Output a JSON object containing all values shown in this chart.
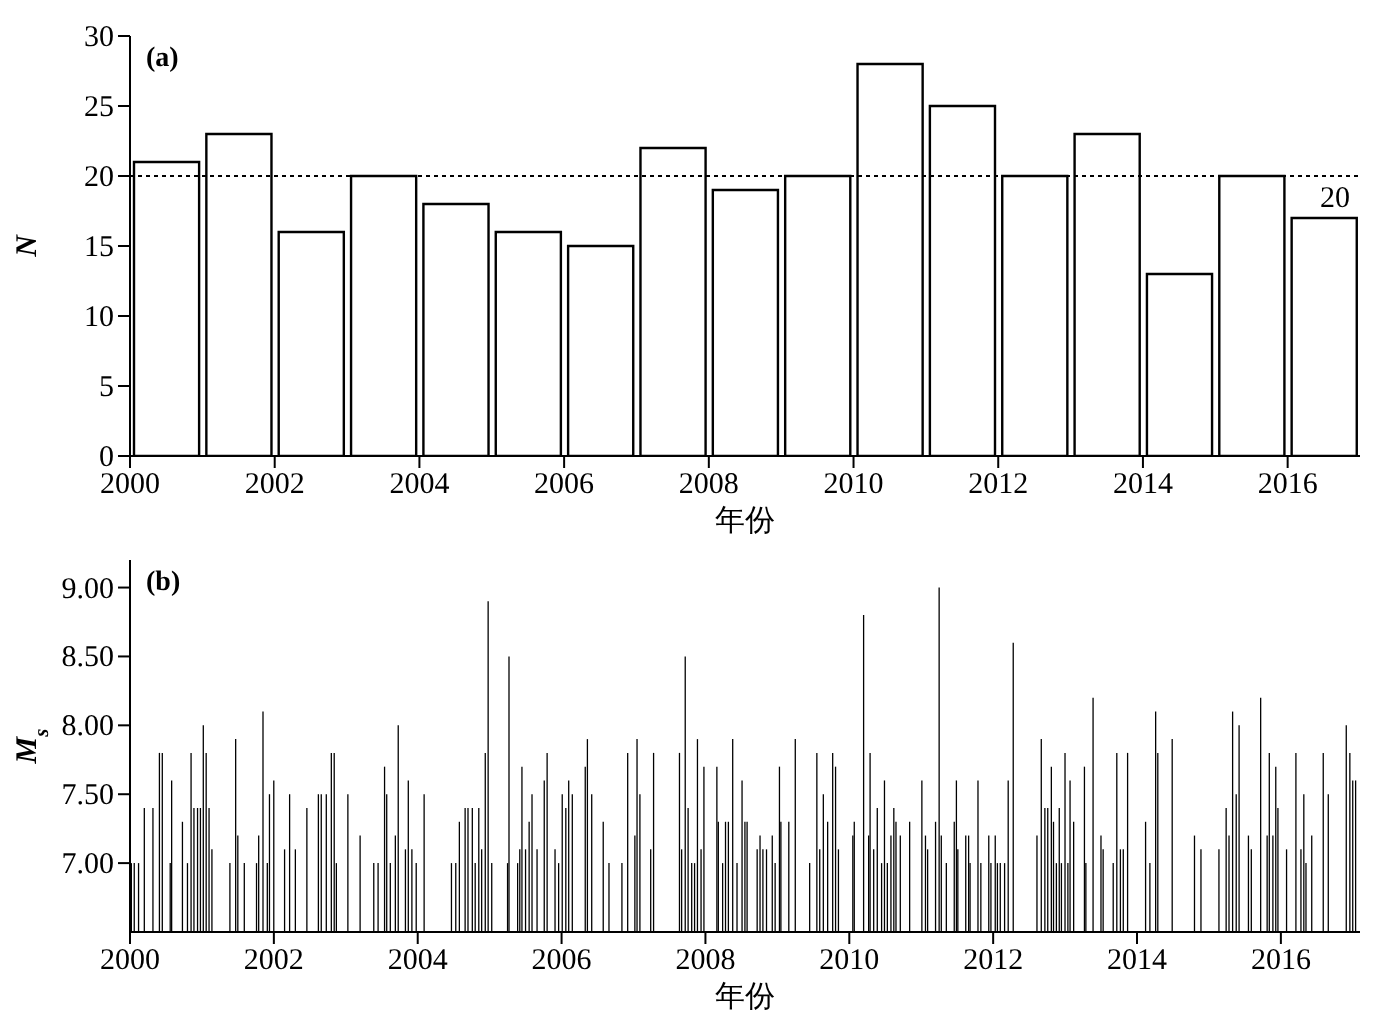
{
  "chart_data": [
    {
      "type": "histogram",
      "annotations": [
        "(a)"
      ],
      "xlabel": "年份",
      "ylabel": "N",
      "color": "#ffffff",
      "bins": [
        2000,
        2001,
        2002,
        2003,
        2004,
        2005,
        2006,
        2007,
        2008,
        2009,
        2010,
        2011,
        2012,
        2013,
        2014,
        2015,
        2016,
        2017
      ],
      "values": [
        21,
        23,
        16,
        20,
        18,
        16,
        15,
        22,
        19,
        20,
        28,
        25,
        20,
        23,
        13,
        20,
        17
      ],
      "xlim": [
        2000,
        2017
      ],
      "xticks": [
        2000,
        2002,
        2004,
        2006,
        2008,
        2010,
        2012,
        2014,
        2016
      ],
      "ylim": [
        0,
        30
      ],
      "yticks": [
        0,
        5,
        10,
        15,
        20,
        25,
        30
      ],
      "ref_lines": [
        {
          "axis": "y",
          "value": 20,
          "label": "20",
          "line_style": "dotted"
        }
      ]
    },
    {
      "type": "bar",
      "annotations": [
        "(b)"
      ],
      "xlabel": "年份",
      "ylabel": "M$_{s}$",
      "color": "#000000",
      "x": [
        2000.02,
        2000.06,
        2000.12,
        2000.2,
        2000.32,
        2000.41,
        2000.45,
        2000.56,
        2000.58,
        2000.73,
        2000.8,
        2000.85,
        2000.89,
        2000.94,
        2000.98,
        2001.02,
        2001.06,
        2001.1,
        2001.14,
        2001.39,
        2001.47,
        2001.5,
        2001.59,
        2001.76,
        2001.79,
        2001.85,
        2001.91,
        2001.94,
        2002.0,
        2002.15,
        2002.22,
        2002.3,
        2002.46,
        2002.62,
        2002.66,
        2002.73,
        2002.8,
        2002.84,
        2002.87,
        2003.03,
        2003.2,
        2003.39,
        2003.45,
        2003.54,
        2003.57,
        2003.62,
        2003.69,
        2003.73,
        2003.83,
        2003.87,
        2003.92,
        2003.98,
        2004.09,
        2004.47,
        2004.53,
        2004.58,
        2004.66,
        2004.7,
        2004.76,
        2004.8,
        2004.85,
        2004.89,
        2004.94,
        2004.98,
        2005.03,
        2005.25,
        2005.27,
        2005.39,
        2005.42,
        2005.45,
        2005.5,
        2005.55,
        2005.59,
        2005.66,
        2005.76,
        2005.8,
        2005.91,
        2005.96,
        2006.01,
        2006.06,
        2006.1,
        2006.15,
        2006.33,
        2006.36,
        2006.42,
        2006.58,
        2006.66,
        2006.84,
        2006.92,
        2007.02,
        2007.05,
        2007.09,
        2007.24,
        2007.28,
        2007.64,
        2007.67,
        2007.72,
        2007.76,
        2007.81,
        2007.85,
        2007.89,
        2007.94,
        2007.98,
        2008.16,
        2008.18,
        2008.24,
        2008.28,
        2008.32,
        2008.38,
        2008.44,
        2008.51,
        2008.55,
        2008.58,
        2008.72,
        2008.76,
        2008.8,
        2008.85,
        2008.93,
        2008.97,
        2009.03,
        2009.05,
        2009.16,
        2009.25,
        2009.45,
        2009.55,
        2009.59,
        2009.64,
        2009.7,
        2009.77,
        2009.81,
        2009.85,
        2010.05,
        2010.07,
        2010.2,
        2010.27,
        2010.29,
        2010.34,
        2010.39,
        2010.45,
        2010.49,
        2010.53,
        2010.58,
        2010.62,
        2010.65,
        2010.71,
        2010.84,
        2011.01,
        2011.06,
        2011.09,
        2011.2,
        2011.25,
        2011.28,
        2011.35,
        2011.46,
        2011.49,
        2011.51,
        2011.62,
        2011.66,
        2011.68,
        2011.79,
        2011.83,
        2011.94,
        2011.97,
        2012.03,
        2012.06,
        2012.1,
        2012.16,
        2012.21,
        2012.28,
        2012.61,
        2012.67,
        2012.72,
        2012.76,
        2012.81,
        2012.84,
        2012.88,
        2012.92,
        2012.95,
        2013.0,
        2013.04,
        2013.07,
        2013.12,
        2013.27,
        2013.29,
        2013.39,
        2013.5,
        2013.53,
        2013.67,
        2013.72,
        2013.77,
        2013.81,
        2013.87,
        2014.12,
        2014.18,
        2014.26,
        2014.29,
        2014.49,
        2014.8,
        2014.89,
        2015.14,
        2015.24,
        2015.28,
        2015.33,
        2015.38,
        2015.42,
        2015.55,
        2015.59,
        2015.72,
        2015.81,
        2015.84,
        2015.89,
        2015.93,
        2015.96,
        2016.08,
        2016.21,
        2016.28,
        2016.32,
        2016.35,
        2016.43,
        2016.59,
        2016.66,
        2016.91,
        2016.96,
        2017.0,
        2017.04
      ],
      "values": [
        7.0,
        7.0,
        7.0,
        7.4,
        7.4,
        7.8,
        7.8,
        7.0,
        7.6,
        7.3,
        7.0,
        7.8,
        7.4,
        7.4,
        7.4,
        8.0,
        7.8,
        7.4,
        7.1,
        7.0,
        7.9,
        7.2,
        7.0,
        7.0,
        7.2,
        8.1,
        7.0,
        7.5,
        7.6,
        7.1,
        7.5,
        7.1,
        7.4,
        7.5,
        7.5,
        7.5,
        7.8,
        7.8,
        7.0,
        7.5,
        7.2,
        7.0,
        7.0,
        7.7,
        7.5,
        7.0,
        7.2,
        8.0,
        7.1,
        7.6,
        7.1,
        7.0,
        7.5,
        7.0,
        7.0,
        7.3,
        7.4,
        7.4,
        7.4,
        7.0,
        7.4,
        7.1,
        7.8,
        8.9,
        7.0,
        7.0,
        8.5,
        7.0,
        7.1,
        7.7,
        7.1,
        7.3,
        7.5,
        7.1,
        7.6,
        7.8,
        7.1,
        7.0,
        7.5,
        7.4,
        7.6,
        7.5,
        7.7,
        7.9,
        7.5,
        7.3,
        7.0,
        7.0,
        7.8,
        7.2,
        7.9,
        7.5,
        7.1,
        7.8,
        7.8,
        7.1,
        8.5,
        7.4,
        7.0,
        7.0,
        7.9,
        7.1,
        7.7,
        7.7,
        7.3,
        7.0,
        7.3,
        7.3,
        7.9,
        7.0,
        7.6,
        7.3,
        7.3,
        7.1,
        7.2,
        7.1,
        7.1,
        7.2,
        7.0,
        7.7,
        7.3,
        7.3,
        7.9,
        7.0,
        7.8,
        7.1,
        7.5,
        7.3,
        7.8,
        7.7,
        7.1,
        7.2,
        7.3,
        8.8,
        7.2,
        7.8,
        7.1,
        7.4,
        7.0,
        7.6,
        7.0,
        7.2,
        7.4,
        7.3,
        7.2,
        7.3,
        7.6,
        7.2,
        7.1,
        7.3,
        9.0,
        7.2,
        7.0,
        7.3,
        7.6,
        7.1,
        7.2,
        7.2,
        7.0,
        7.6,
        7.0,
        7.2,
        7.0,
        7.2,
        7.0,
        7.0,
        7.0,
        7.6,
        8.6,
        7.2,
        7.9,
        7.4,
        7.4,
        7.7,
        7.3,
        7.0,
        7.4,
        7.0,
        7.8,
        7.0,
        7.6,
        7.3,
        7.7,
        7.0,
        8.2,
        7.2,
        7.1,
        7.0,
        7.8,
        7.1,
        7.1,
        7.8,
        7.3,
        7.0,
        8.1,
        7.8,
        7.9,
        7.2,
        7.1,
        7.1,
        7.4,
        7.2,
        8.1,
        7.5,
        8.0,
        7.2,
        7.1,
        8.2,
        7.2,
        7.8,
        7.2,
        7.7,
        7.4,
        7.1,
        7.8,
        7.1,
        7.5,
        7.0,
        7.2,
        7.8,
        7.5,
        8.0,
        7.8,
        7.6,
        7.6
      ],
      "xlim": [
        2000,
        2017.1
      ],
      "xticks": [
        2000,
        2002,
        2004,
        2006,
        2008,
        2010,
        2012,
        2014,
        2016
      ],
      "ylim": [
        6.5,
        9.2
      ],
      "yticks": [
        {
          "value": 7,
          "label": "7.00"
        },
        {
          "value": 7.5,
          "label": "7.50"
        },
        {
          "value": 8,
          "label": "8.00"
        },
        {
          "value": 8.5,
          "label": "8.50"
        },
        {
          "value": 9,
          "label": "9.00"
        }
      ]
    }
  ]
}
